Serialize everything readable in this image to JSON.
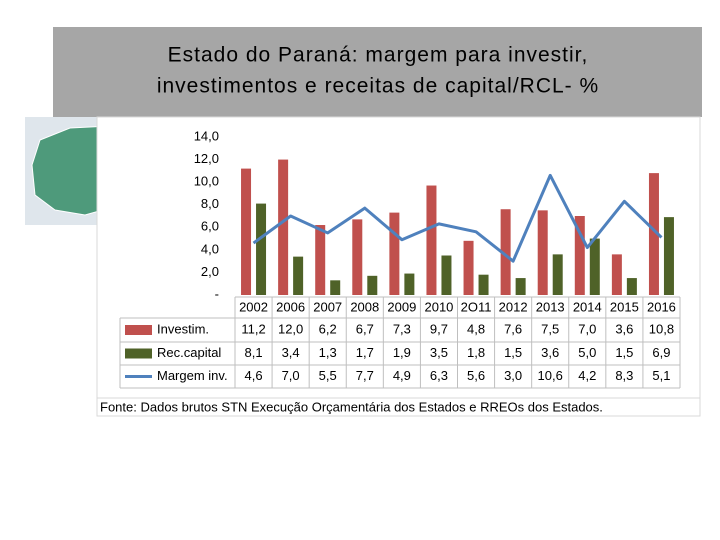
{
  "chart_data": {
    "type": "bar",
    "title": [
      "Estado do Paraná: margem para investir,",
      "investimentos e receitas de capital/RCL- %"
    ],
    "categories": [
      "2002",
      "2006",
      "2007",
      "2008",
      "2009",
      "2010",
      "2O11",
      "2012",
      "2013",
      "2014",
      "2015",
      "2016"
    ],
    "series": [
      {
        "name": "Investim.",
        "type": "bar",
        "color": "#c0504d",
        "values": [
          11.2,
          12.0,
          6.2,
          6.7,
          7.3,
          9.7,
          4.8,
          7.6,
          7.5,
          7.0,
          3.6,
          10.8
        ],
        "value_labels": [
          "11,2",
          "12,0",
          "6,2",
          "6,7",
          "7,3",
          "9,7",
          "4,8",
          "7,6",
          "7,5",
          "7,0",
          "3,6",
          "10,8"
        ]
      },
      {
        "name": "Rec.capital",
        "type": "bar",
        "color": "#4f6228",
        "values": [
          8.1,
          3.4,
          1.3,
          1.7,
          1.9,
          3.5,
          1.8,
          1.5,
          3.6,
          5.0,
          1.5,
          6.9
        ],
        "value_labels": [
          "8,1",
          "3,4",
          "1,3",
          "1,7",
          "1,9",
          "3,5",
          "1,8",
          "1,5",
          "3,6",
          "5,0",
          "1,5",
          "6,9"
        ]
      },
      {
        "name": "Margem inv.",
        "type": "line",
        "color": "#4f81bd",
        "values": [
          4.6,
          7.0,
          5.5,
          7.7,
          4.9,
          6.3,
          5.6,
          3.0,
          10.6,
          4.2,
          8.3,
          5.1
        ],
        "value_labels": [
          "4,6",
          "7,0",
          "5,5",
          "7,7",
          "4,9",
          "6,3",
          "5,6",
          "3,0",
          "10,6",
          "4,2",
          "8,3",
          "5,1"
        ]
      }
    ],
    "ylim": [
      0,
      14
    ],
    "yticks": [
      {
        "value": 0,
        "label": "-"
      },
      {
        "value": 2,
        "label": "2,0"
      },
      {
        "value": 4,
        "label": "4,0"
      },
      {
        "value": 6,
        "label": "6,0"
      },
      {
        "value": 8,
        "label": "8,0"
      },
      {
        "value": 10,
        "label": "10,0"
      },
      {
        "value": 12,
        "label": "12,0"
      },
      {
        "value": 14,
        "label": "14,0"
      }
    ],
    "grid": false,
    "source": "Fonte: Dados brutos STN Execução Orçamentária dos Estados e RREOs dos Estados."
  }
}
